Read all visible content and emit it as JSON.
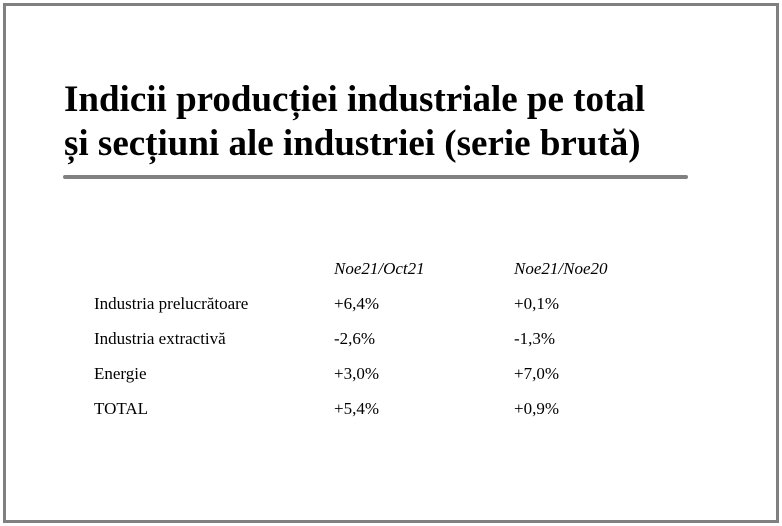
{
  "slide": {
    "title_lines": [
      "Indicii producției industriale pe total",
      "și secțiuni ale industriei (serie brută)"
    ]
  },
  "table": {
    "columns": [
      "",
      "Noe21/Oct21",
      "Noe21/Noe20"
    ],
    "rows": [
      {
        "label": "Industria prelucrătoare",
        "mom": "+6,4%",
        "yoy": "+0,1%"
      },
      {
        "label": "Industria extractivă",
        "mom": "-2,6%",
        "yoy": "-1,3%"
      },
      {
        "label": "Energie",
        "mom": "+3,0%",
        "yoy": "+7,0%"
      },
      {
        "label": "TOTAL",
        "mom": "+5,4%",
        "yoy": "+0,9%"
      }
    ]
  },
  "colors": {
    "border": "#808080",
    "rule": "#808080",
    "text": "#000000",
    "background": "#ffffff"
  }
}
